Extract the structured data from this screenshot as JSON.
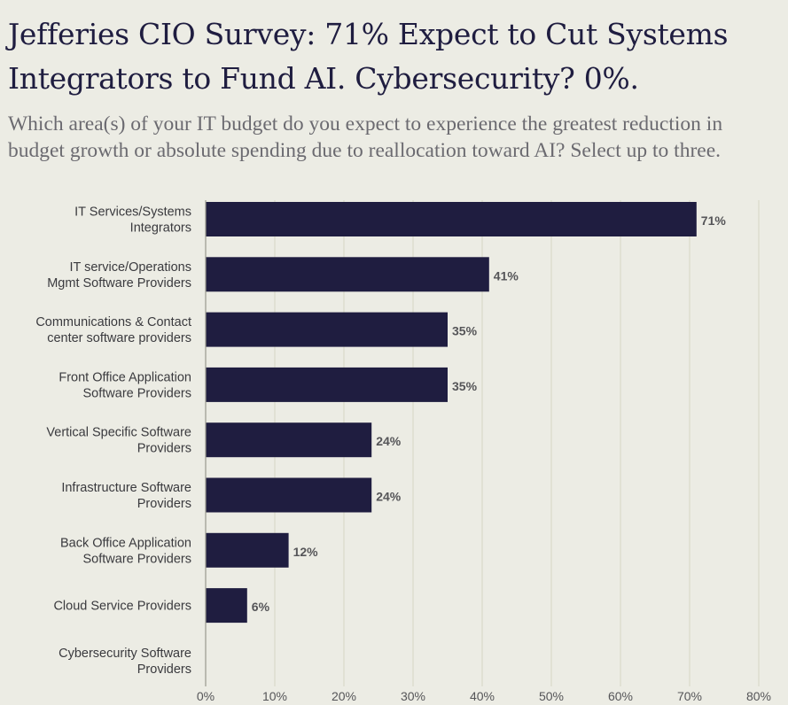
{
  "title": "Jefferies CIO Survey: 71% Expect to Cut Systems Integrators to Fund AI. Cybersecurity? 0%.",
  "subtitle": "Which area(s) of your IT budget do you expect to experience the greatest reduction in budget growth or absolute spending due to reallocation toward AI? Select up to three.",
  "colors": {
    "background": "#ecece4",
    "bar": "#1f1d40",
    "grid": "#d6d6c4",
    "title": "#1f1d40",
    "subtitle": "#6b6a70"
  },
  "chart_data": {
    "type": "bar",
    "orientation": "horizontal",
    "categories": [
      [
        "IT Services/Systems",
        "Integrators"
      ],
      [
        "IT service/Operations",
        "Mgmt Software Providers"
      ],
      [
        "Communications & Contact",
        "center software providers"
      ],
      [
        "Front Office Application",
        "Software Providers"
      ],
      [
        "Vertical Specific Software",
        "Providers"
      ],
      [
        "Infrastructure  Software",
        "Providers"
      ],
      [
        "Back Office Application",
        "Software Providers"
      ],
      [
        "Cloud Service Providers"
      ],
      [
        "Cybersecurity Software",
        "Providers"
      ]
    ],
    "values": [
      71,
      41,
      35,
      35,
      24,
      24,
      12,
      6,
      0
    ],
    "value_labels": [
      "71%",
      "41%",
      "35%",
      "35%",
      "24%",
      "24%",
      "12%",
      "6%",
      ""
    ],
    "xlim": [
      0,
      80
    ],
    "x_ticks": [
      "0%",
      "10%",
      "20%",
      "30%",
      "40%",
      "50%",
      "60%",
      "70%",
      "80%"
    ],
    "grid": true
  }
}
